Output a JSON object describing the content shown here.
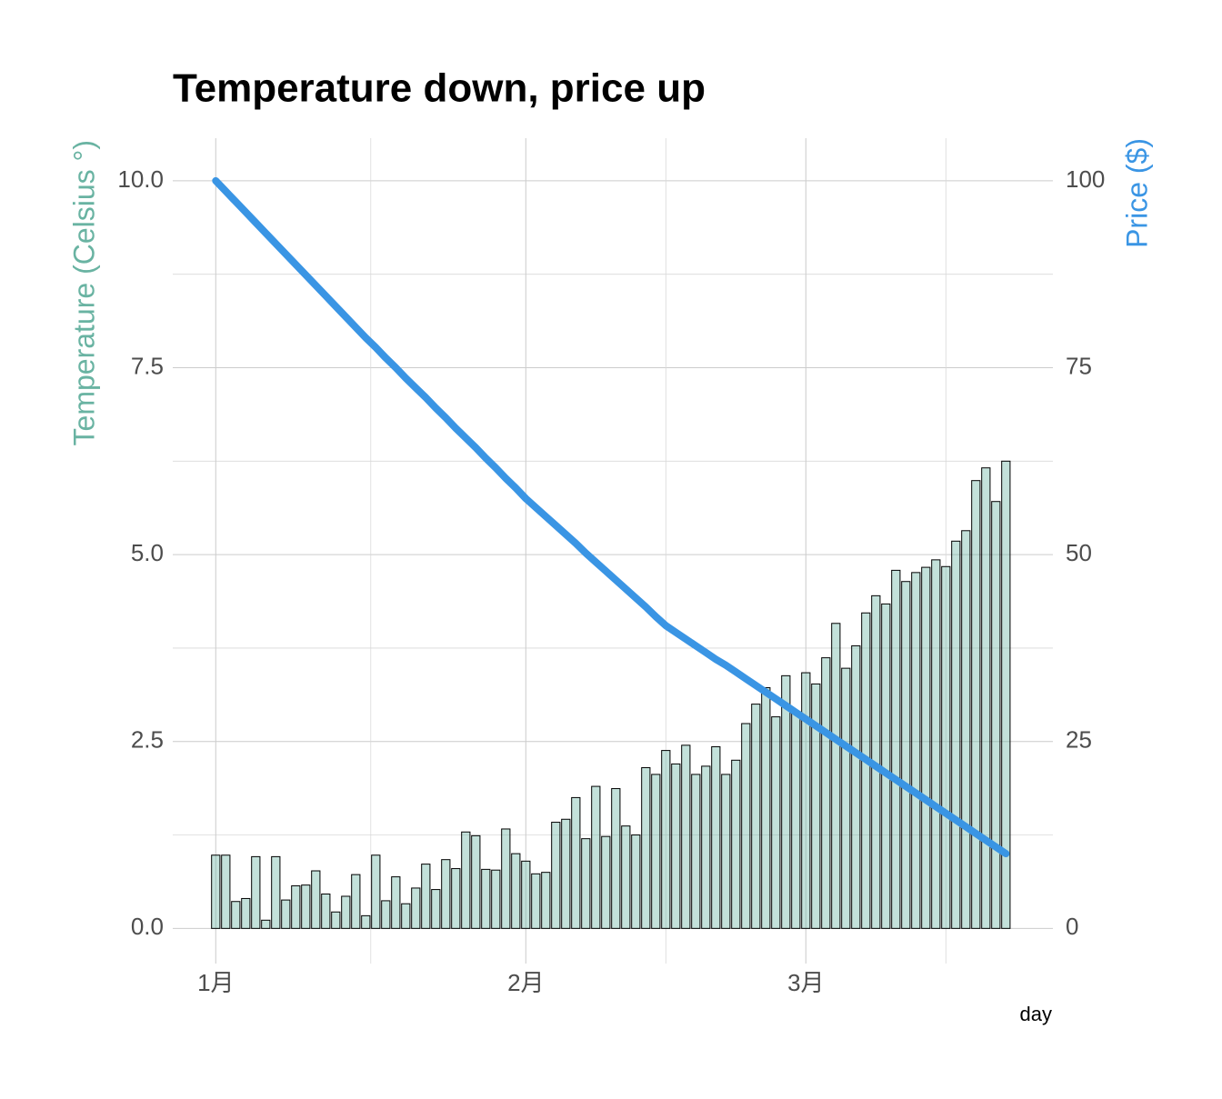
{
  "chart_data": {
    "type": "bar-line",
    "title": "Temperature down, price up",
    "x_label": "day",
    "y_label": "Temperature (Celsius °)",
    "y2_label": "Price ($)",
    "x": [
      0,
      1,
      2,
      3,
      4,
      5,
      6,
      7,
      8,
      9,
      10,
      11,
      12,
      13,
      14,
      15,
      16,
      17,
      18,
      19,
      20,
      21,
      22,
      23,
      24,
      25,
      26,
      27,
      28,
      29,
      30,
      31,
      32,
      33,
      34,
      35,
      36,
      37,
      38,
      39,
      40,
      41,
      42,
      43,
      44,
      45,
      46,
      47,
      48,
      49,
      50,
      51,
      52,
      53,
      54,
      55,
      56,
      57,
      58,
      59,
      60,
      61,
      62,
      63,
      64,
      65,
      66,
      67,
      68,
      69,
      70,
      71,
      72,
      73,
      74,
      75,
      76,
      77,
      78,
      79
    ],
    "series": [
      {
        "name": "Temperature (Celsius °)",
        "kind": "bar",
        "color": "#69b3a2",
        "axis": "y",
        "values": [
          0.98,
          0.98,
          0.36,
          0.4,
          0.96,
          0.11,
          0.96,
          0.38,
          0.57,
          0.58,
          0.77,
          0.46,
          0.22,
          0.43,
          0.72,
          0.17,
          0.98,
          0.37,
          0.69,
          0.33,
          0.54,
          0.86,
          0.52,
          0.92,
          0.8,
          1.29,
          1.24,
          0.79,
          0.78,
          1.33,
          1.0,
          0.9,
          0.73,
          0.75,
          1.42,
          1.46,
          1.75,
          1.2,
          1.9,
          1.23,
          1.87,
          1.37,
          1.25,
          2.15,
          2.06,
          2.38,
          2.2,
          2.45,
          2.06,
          2.17,
          2.43,
          2.06,
          2.25,
          2.74,
          3.0,
          3.22,
          2.83,
          3.38,
          2.9,
          3.42,
          3.27,
          3.62,
          4.08,
          3.48,
          3.78,
          4.22,
          4.45,
          4.34,
          4.79,
          4.64,
          4.76,
          4.83,
          4.93,
          4.84,
          5.18,
          5.32,
          5.99,
          6.16,
          5.71,
          6.25
        ]
      },
      {
        "name": "Price ($)",
        "kind": "line",
        "color": "#3a95e4",
        "axis": "y2",
        "values": [
          100,
          98.6,
          97.2,
          95.8,
          94.4,
          93.0,
          91.6,
          90.2,
          88.8,
          87.4,
          86.0,
          84.6,
          83.2,
          81.8,
          80.4,
          79.0,
          77.7,
          76.3,
          75.0,
          73.6,
          72.3,
          71.0,
          69.6,
          68.3,
          66.9,
          65.6,
          64.3,
          62.9,
          61.6,
          60.2,
          58.9,
          57.5,
          56.3,
          55.1,
          53.9,
          52.7,
          51.5,
          50.2,
          49.0,
          47.8,
          46.6,
          45.4,
          44.2,
          43.0,
          41.7,
          40.5,
          39.6,
          38.7,
          37.8,
          36.9,
          36.0,
          35.2,
          34.3,
          33.4,
          32.5,
          31.6,
          30.7,
          29.8,
          28.9,
          28.0,
          27.1,
          26.2,
          25.3,
          24.4,
          23.5,
          22.6,
          21.7,
          20.8,
          19.9,
          19.0,
          18.1,
          17.2,
          16.3,
          15.4,
          14.5,
          13.6,
          12.7,
          11.8,
          10.9,
          10.0
        ]
      }
    ],
    "xlim": [
      -4.3,
      83.7
    ],
    "xticks": [
      {
        "value": 0,
        "label": "1月"
      },
      {
        "value": 31,
        "label": "2月"
      },
      {
        "value": 59,
        "label": "3月"
      }
    ],
    "ylim": [
      -0.47,
      10.57
    ],
    "yticks": [
      {
        "value": 0,
        "label": "0.0"
      },
      2.5,
      {
        "value": 5,
        "label": "5.0"
      },
      7.5,
      {
        "value": 10,
        "label": "10.0"
      }
    ],
    "y2lim": [
      -4.7,
      105.7
    ],
    "y2ticks": [
      0,
      25,
      50,
      75,
      100
    ],
    "grid": true
  }
}
